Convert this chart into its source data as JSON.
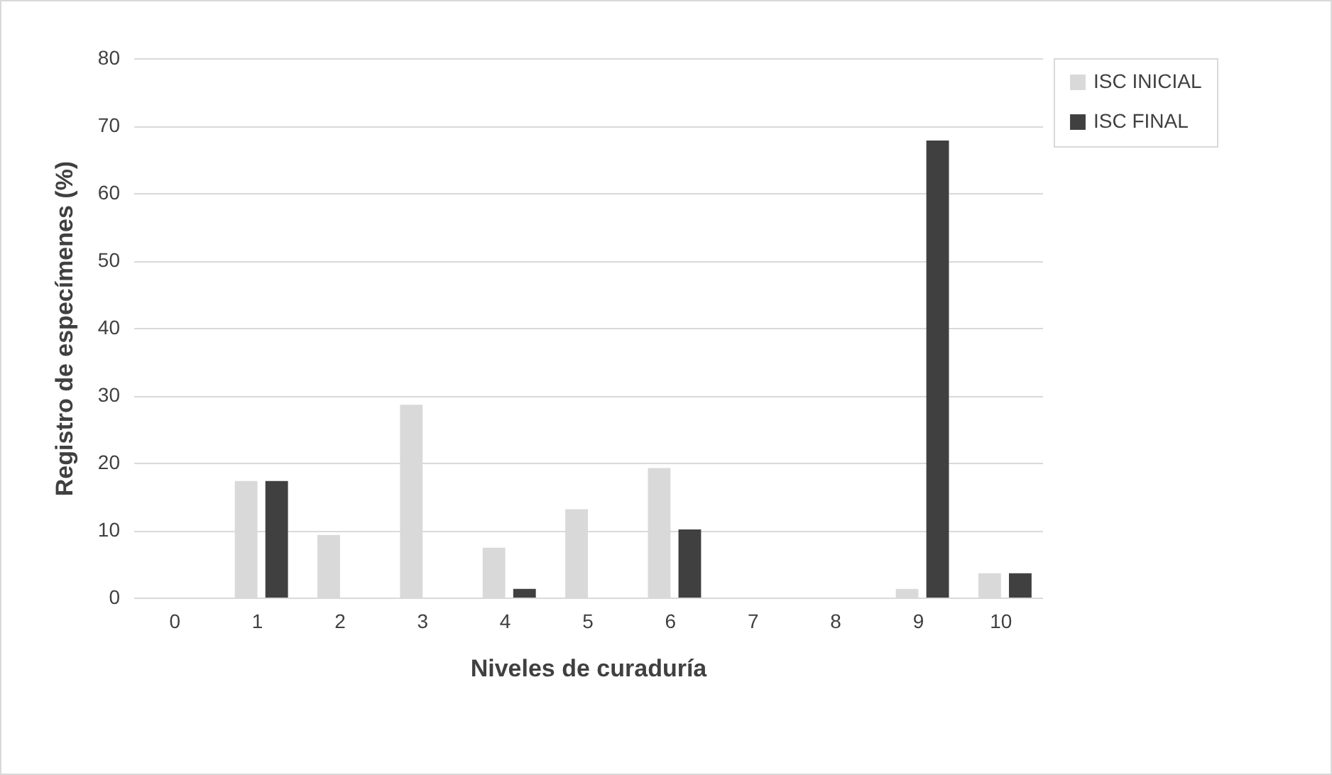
{
  "chart_data": {
    "type": "bar",
    "xlabel": "Niveles de curaduría",
    "ylabel": "Registro de especímenes (%)",
    "categories": [
      "0",
      "1",
      "2",
      "3",
      "4",
      "5",
      "6",
      "7",
      "8",
      "9",
      "10"
    ],
    "series": [
      {
        "name": "ISC INICIAL",
        "color": "#d9d9d9",
        "values": [
          0,
          17.3,
          9.3,
          28.6,
          7.4,
          13.1,
          19.2,
          0,
          0,
          1.3,
          3.6
        ]
      },
      {
        "name": "ISC FINAL",
        "color": "#404040",
        "values": [
          0,
          17.3,
          0,
          0,
          1.3,
          0,
          10.1,
          0,
          0,
          67.8,
          3.6
        ]
      }
    ],
    "ylim": [
      0,
      80
    ],
    "yticks": [
      0,
      10,
      20,
      30,
      40,
      50,
      60,
      70,
      80
    ],
    "grid": "y",
    "legend": "right"
  }
}
